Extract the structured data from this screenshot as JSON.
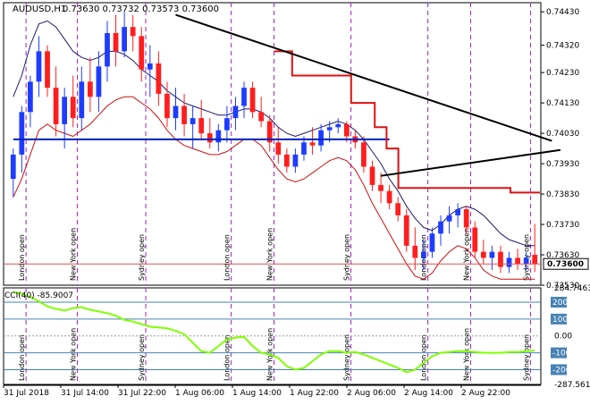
{
  "chart_header": {
    "symbol": "AUDUSD,H1",
    "ohlc": "0.73630 0.73732 0.73573 0.73600"
  },
  "price_axis": {
    "labels": [
      "0.74430",
      "0.74320",
      "0.74230",
      "0.74130",
      "0.74030",
      "0.73930",
      "0.73830",
      "0.73730",
      "0.73630",
      "0.73530"
    ],
    "current_price": "0.73600"
  },
  "session_labels": [
    "London open",
    "New York open",
    "Sydney open",
    "London open",
    "New York open",
    "Sydney open",
    "London open",
    "New York open",
    "Sydney open"
  ],
  "indicator": {
    "title": "CCI(40) -85.9007",
    "axis_labels": [
      "284.7463",
      "200",
      "100",
      "0.00",
      "-100",
      "-200",
      "-287.5614"
    ]
  },
  "time_axis": [
    "31 Jul 2018",
    "31 Jul 14:00",
    "31 Jul 22:00",
    "1 Aug 06:00",
    "1 Aug 14:00",
    "1 Aug 22:00",
    "2 Aug 06:00",
    "2 Aug 14:00",
    "2 Aug 22:00"
  ],
  "colors": {
    "bull_candle": "#1e3cff",
    "bear_candle": "#ff1e1e",
    "session_line": "#a020c0",
    "trailing_stop": "#e01010",
    "level_line": "#0020c0",
    "upper_band": "#1a1a6e",
    "lower_band": "#cc1010",
    "cci_line": "#7fff00",
    "cci_level": "#4682b4",
    "current_price_line": "#e05050"
  },
  "chart_data": {
    "type": "candlestick",
    "ohlc": [
      [
        0.7388,
        0.7398,
        0.7382,
        0.7396
      ],
      [
        0.7396,
        0.7412,
        0.739,
        0.741
      ],
      [
        0.741,
        0.7422,
        0.7405,
        0.742
      ],
      [
        0.742,
        0.7435,
        0.7415,
        0.743
      ],
      [
        0.743,
        0.7432,
        0.7415,
        0.7418
      ],
      [
        0.7418,
        0.7425,
        0.7402,
        0.7406
      ],
      [
        0.7406,
        0.7418,
        0.7398,
        0.7415
      ],
      [
        0.7415,
        0.7422,
        0.7405,
        0.7408
      ],
      [
        0.7408,
        0.7425,
        0.7404,
        0.742
      ],
      [
        0.742,
        0.7428,
        0.741,
        0.7415
      ],
      [
        0.7415,
        0.743,
        0.741,
        0.7425
      ],
      [
        0.7425,
        0.744,
        0.742,
        0.7436
      ],
      [
        0.7436,
        0.7442,
        0.7425,
        0.743
      ],
      [
        0.743,
        0.7443,
        0.7428,
        0.7438
      ],
      [
        0.7438,
        0.7442,
        0.743,
        0.7435
      ],
      [
        0.7435,
        0.7438,
        0.742,
        0.7424
      ],
      [
        0.7424,
        0.7432,
        0.7415,
        0.7426
      ],
      [
        0.7426,
        0.743,
        0.7412,
        0.7416
      ],
      [
        0.7416,
        0.742,
        0.7405,
        0.7408
      ],
      [
        0.7408,
        0.7418,
        0.7404,
        0.7412
      ],
      [
        0.7412,
        0.7416,
        0.7402,
        0.7406
      ],
      [
        0.7406,
        0.7412,
        0.7398,
        0.7408
      ],
      [
        0.7408,
        0.7414,
        0.7401,
        0.7403
      ],
      [
        0.7403,
        0.7408,
        0.7398,
        0.74
      ],
      [
        0.74,
        0.7406,
        0.7397,
        0.7404
      ],
      [
        0.7404,
        0.7412,
        0.74,
        0.7408
      ],
      [
        0.7408,
        0.7415,
        0.7404,
        0.7412
      ],
      [
        0.7412,
        0.742,
        0.7408,
        0.7418
      ],
      [
        0.7418,
        0.742,
        0.7408,
        0.741
      ],
      [
        0.741,
        0.7415,
        0.7405,
        0.7407
      ],
      [
        0.7407,
        0.7409,
        0.7397,
        0.74
      ],
      [
        0.74,
        0.7405,
        0.7393,
        0.7396
      ],
      [
        0.7396,
        0.7398,
        0.739,
        0.7392
      ],
      [
        0.7392,
        0.7398,
        0.739,
        0.7396
      ],
      [
        0.7396,
        0.7402,
        0.7394,
        0.74
      ],
      [
        0.74,
        0.7405,
        0.7396,
        0.7399
      ],
      [
        0.7399,
        0.7406,
        0.7397,
        0.7404
      ],
      [
        0.7404,
        0.7407,
        0.74,
        0.7405
      ],
      [
        0.7405,
        0.7408,
        0.7403,
        0.7406
      ],
      [
        0.7406,
        0.7407,
        0.74,
        0.7402
      ],
      [
        0.7402,
        0.7404,
        0.7398,
        0.74
      ],
      [
        0.74,
        0.7402,
        0.739,
        0.7392
      ],
      [
        0.7392,
        0.7394,
        0.7384,
        0.7386
      ],
      [
        0.7386,
        0.739,
        0.738,
        0.7384
      ],
      [
        0.7384,
        0.7386,
        0.7378,
        0.738
      ],
      [
        0.738,
        0.7382,
        0.7374,
        0.7376
      ],
      [
        0.7376,
        0.7378,
        0.7364,
        0.7366
      ],
      [
        0.7366,
        0.7372,
        0.7358,
        0.7362
      ],
      [
        0.7362,
        0.7368,
        0.7358,
        0.7364
      ],
      [
        0.7364,
        0.7372,
        0.7362,
        0.737
      ],
      [
        0.737,
        0.7376,
        0.7366,
        0.7374
      ],
      [
        0.7374,
        0.7379,
        0.737,
        0.7376
      ],
      [
        0.7376,
        0.738,
        0.7372,
        0.7378
      ],
      [
        0.7378,
        0.7379,
        0.737,
        0.7372
      ],
      [
        0.7372,
        0.7374,
        0.7362,
        0.7364
      ],
      [
        0.7364,
        0.7368,
        0.736,
        0.7362
      ],
      [
        0.7362,
        0.7366,
        0.7358,
        0.7364
      ],
      [
        0.7364,
        0.7366,
        0.7357,
        0.7359
      ],
      [
        0.7359,
        0.7364,
        0.7357,
        0.7362
      ],
      [
        0.7362,
        0.7365,
        0.7358,
        0.736
      ],
      [
        0.736,
        0.7364,
        0.7358,
        0.7362
      ],
      [
        0.7363,
        0.73732,
        0.73573,
        0.736
      ]
    ],
    "price_range": [
      0.7353,
      0.7446
    ],
    "cci_range": [
      -287.5614,
      284.7463
    ],
    "session_bars": [
      2,
      8,
      16,
      26,
      31,
      40,
      49,
      54,
      61
    ],
    "cci_values": [
      260,
      250,
      230,
      205,
      175,
      160,
      150,
      165,
      170,
      155,
      145,
      135,
      120,
      95,
      85,
      70,
      55,
      50,
      45,
      30,
      10,
      -40,
      -90,
      -100,
      -60,
      -20,
      -10,
      -5,
      -60,
      -100,
      -110,
      -130,
      -180,
      -200,
      -190,
      -150,
      -110,
      -90,
      -90,
      -100,
      -95,
      -110,
      -130,
      -150,
      -170,
      -190,
      -215,
      -200,
      -160,
      -120,
      -100,
      -95,
      -90,
      -90,
      -95,
      -100,
      -100,
      -100,
      -95,
      -95,
      -90,
      -86
    ],
    "upper_band": [
      0.7415,
      0.7422,
      0.7432,
      0.7439,
      0.744,
      0.7438,
      0.7434,
      0.743,
      0.7428,
      0.7427,
      0.7428,
      0.743,
      0.743,
      0.7429,
      0.7427,
      0.7424,
      0.7422,
      0.742,
      0.7417,
      0.7415,
      0.7413,
      0.7412,
      0.7411,
      0.741,
      0.7409,
      0.7409,
      0.741,
      0.7411,
      0.7411,
      0.741,
      0.7408,
      0.7405,
      0.7403,
      0.7402,
      0.7403,
      0.7404,
      0.7405,
      0.7406,
      0.7407,
      0.7406,
      0.7404,
      0.7401,
      0.7397,
      0.7393,
      0.7388,
      0.7384,
      0.7379,
      0.7375,
      0.7372,
      0.7371,
      0.7373,
      0.7376,
      0.7378,
      0.7379,
      0.7378,
      0.7376,
      0.7373,
      0.737,
      0.7368,
      0.7367,
      0.7366,
      0.7366
    ],
    "lower_band": [
      0.7382,
      0.7388,
      0.7396,
      0.7404,
      0.7406,
      0.7404,
      0.7403,
      0.7402,
      0.7404,
      0.7406,
      0.7409,
      0.7412,
      0.7414,
      0.7415,
      0.7415,
      0.7413,
      0.7411,
      0.7408,
      0.7404,
      0.7401,
      0.7399,
      0.7398,
      0.7397,
      0.7396,
      0.7396,
      0.7397,
      0.7399,
      0.7401,
      0.7401,
      0.7399,
      0.7395,
      0.7391,
      0.7388,
      0.7387,
      0.7388,
      0.739,
      0.7392,
      0.7394,
      0.7395,
      0.7394,
      0.7391,
      0.7386,
      0.738,
      0.7375,
      0.737,
      0.7365,
      0.736,
      0.7356,
      0.7355,
      0.7357,
      0.7361,
      0.7364,
      0.7366,
      0.7365,
      0.7362,
      0.7358,
      0.7356,
      0.7355,
      0.7355,
      0.7355,
      0.7355,
      0.7355
    ],
    "trailing_stop": [
      {
        "from": 45,
        "to": 48,
        "price": 0.743
      },
      {
        "from": 48,
        "to": 58,
        "price": 0.7422
      },
      {
        "from": 58,
        "to": 62,
        "price": 0.7413
      },
      {
        "from": 62,
        "to": 64,
        "price": 0.7405
      },
      {
        "from": 64,
        "to": 66,
        "price": 0.7398
      },
      {
        "from": 66,
        "to": 85,
        "price": 0.7385
      },
      {
        "from": 85,
        "to": 90,
        "price": 0.73835
      }
    ],
    "level_line": {
      "from_bar": 0,
      "to_bar": 44,
      "price": 0.7401
    },
    "trend_lines": [
      {
        "bar1": 19.0,
        "price1": 0.7442,
        "bar2": 63.0,
        "price2": 0.74005
      },
      {
        "bar1": 43.0,
        "price1": 0.7389,
        "bar2": 64.0,
        "price2": 0.73975
      }
    ]
  }
}
